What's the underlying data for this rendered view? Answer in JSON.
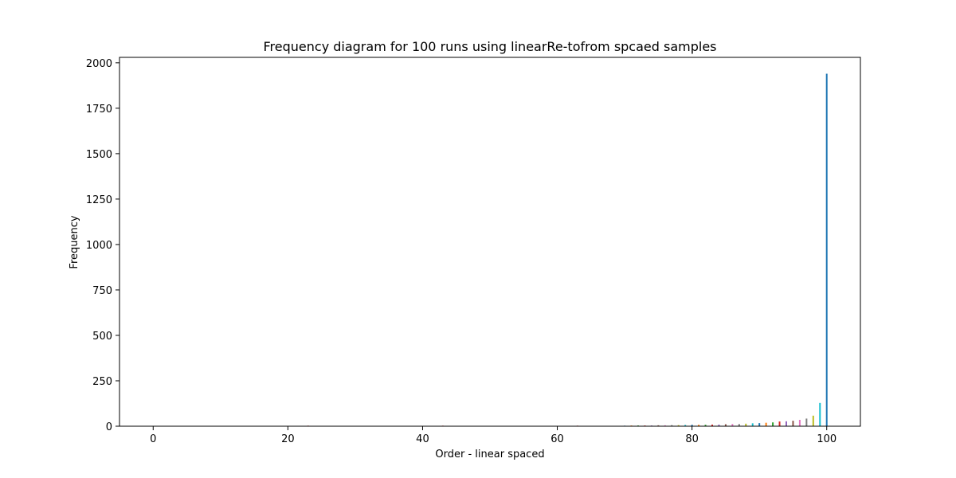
{
  "chart_data": {
    "type": "bar",
    "title": "Frequency diagram for 100 runs using linearRe-tofrom spcaed samples",
    "xlabel": "Order - linear spaced",
    "ylabel": "Frequency",
    "xlim": [
      -5,
      105
    ],
    "ylim": [
      0,
      2030
    ],
    "xticks": [
      0,
      20,
      40,
      60,
      80,
      100
    ],
    "yticks": [
      0,
      250,
      500,
      750,
      1000,
      1250,
      1500,
      1750,
      2000
    ],
    "grid": false,
    "legend": "none",
    "palette": [
      "#1f77b4",
      "#ff7f0e",
      "#2ca02c",
      "#d62728",
      "#9467bd",
      "#8c564b",
      "#e377c2",
      "#7f7f7f",
      "#bcbd22",
      "#17becf"
    ],
    "x": [
      0,
      1,
      2,
      3,
      4,
      5,
      6,
      7,
      8,
      9,
      10,
      11,
      12,
      13,
      14,
      15,
      16,
      17,
      18,
      19,
      20,
      21,
      22,
      23,
      24,
      25,
      26,
      27,
      28,
      29,
      30,
      31,
      32,
      33,
      34,
      35,
      36,
      37,
      38,
      39,
      40,
      41,
      42,
      43,
      44,
      45,
      46,
      47,
      48,
      49,
      50,
      51,
      52,
      53,
      54,
      55,
      56,
      57,
      58,
      59,
      60,
      61,
      62,
      63,
      64,
      65,
      66,
      67,
      68,
      69,
      70,
      71,
      72,
      73,
      74,
      75,
      76,
      77,
      78,
      79,
      80,
      81,
      82,
      83,
      84,
      85,
      86,
      87,
      88,
      89,
      90,
      91,
      92,
      93,
      94,
      95,
      96,
      97,
      98,
      99,
      100
    ],
    "values": [
      2,
      1,
      2,
      2,
      1,
      2,
      1,
      2,
      1,
      1,
      2,
      2,
      1,
      2,
      2,
      1,
      1,
      2,
      1,
      1,
      2,
      1,
      1,
      3,
      2,
      2,
      1,
      1,
      1,
      2,
      2,
      1,
      1,
      2,
      2,
      1,
      1,
      1,
      0,
      1,
      2,
      2,
      1,
      3,
      2,
      1,
      1,
      1,
      2,
      1,
      2,
      2,
      1,
      2,
      2,
      2,
      2,
      1,
      1,
      2,
      2,
      2,
      1,
      3,
      2,
      2,
      1,
      2,
      1,
      2,
      3,
      4,
      4,
      4,
      4,
      5,
      5,
      6,
      6,
      7,
      8,
      8,
      8,
      9,
      9,
      11,
      12,
      12,
      14,
      16,
      17,
      19,
      21,
      26,
      27,
      30,
      35,
      42,
      58,
      128,
      1940
    ]
  }
}
